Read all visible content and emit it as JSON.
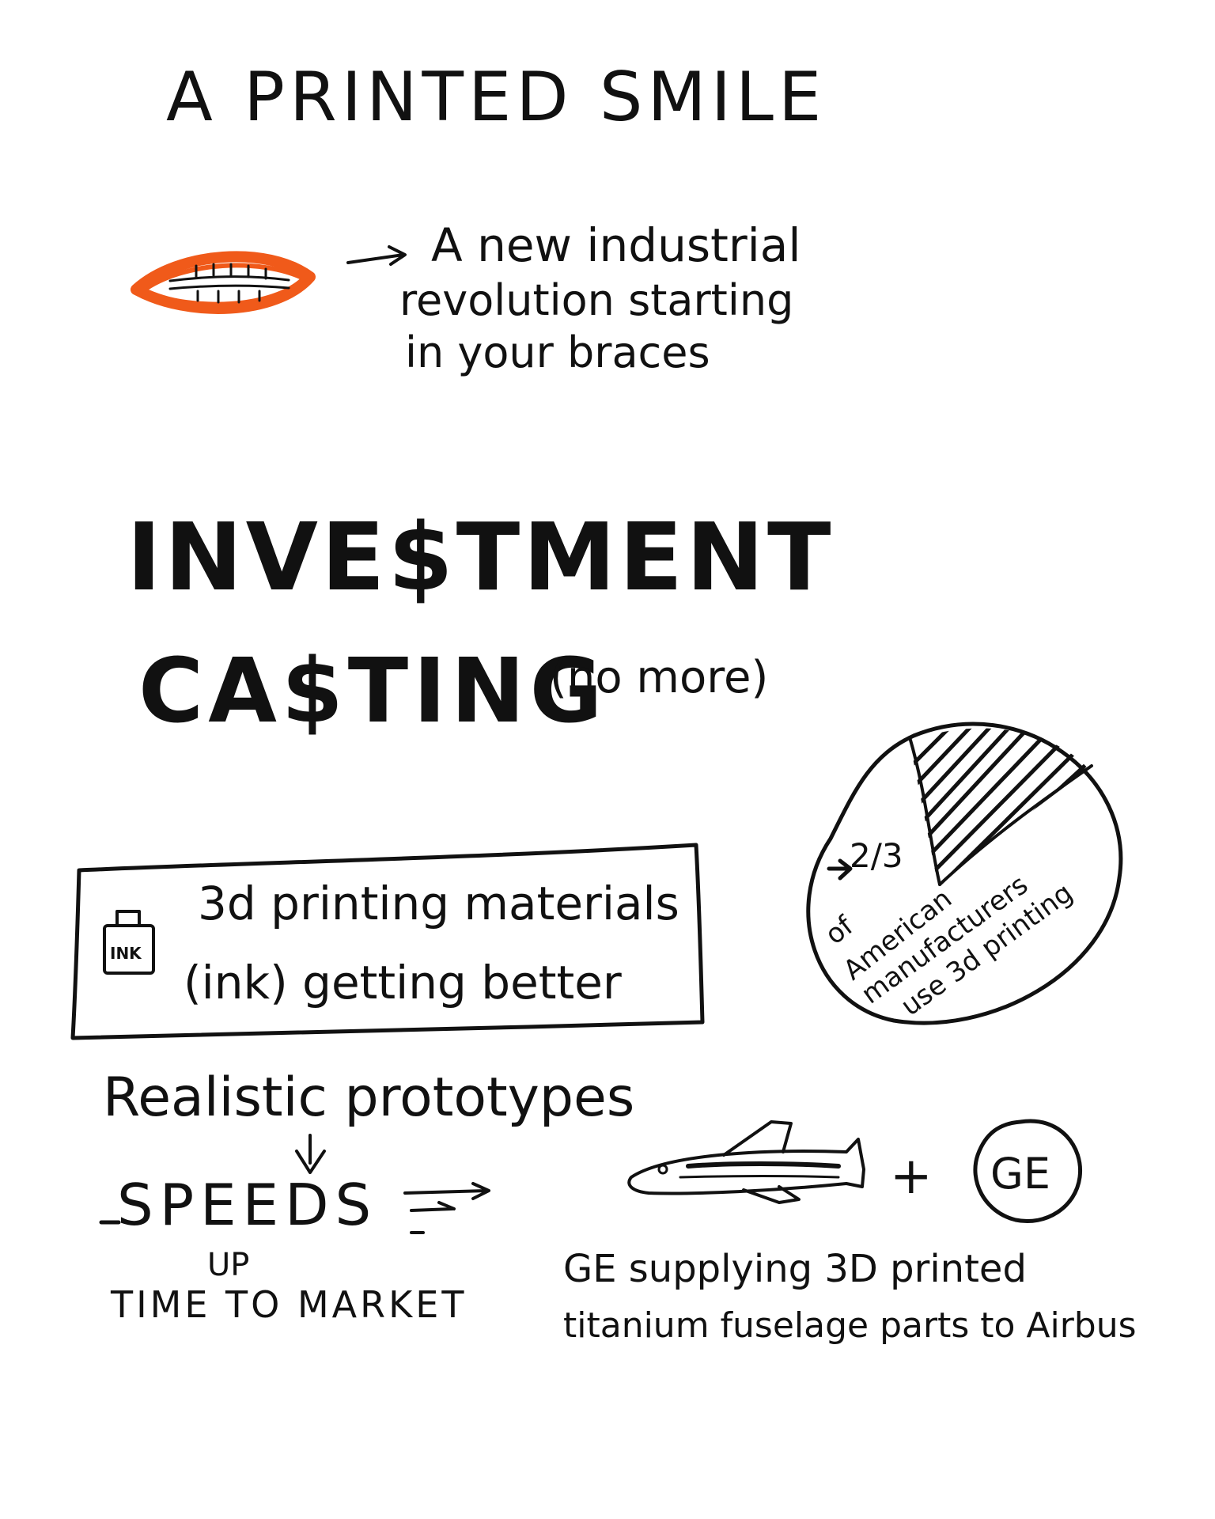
{
  "title": "A PRINTED SMILE",
  "intro": {
    "lines": [
      "A new industrial",
      "revolution starting",
      "in your braces"
    ]
  },
  "heading": {
    "line1": "INVE$TMENT",
    "line2": "CA$TING",
    "aside": "(no more)"
  },
  "materials_box": {
    "icon_label": "INK",
    "line1": "3d printing materials",
    "line2": "(ink) getting better"
  },
  "pie": {
    "figure": "2/3",
    "lines": [
      "of",
      "American",
      "manufacturers",
      "use 3d printing"
    ]
  },
  "prototypes": {
    "title": "Realistic prototypes",
    "speeds": "SPEEDS",
    "up": "UP",
    "market": "TIME TO MARKET"
  },
  "ge": {
    "plus": "+",
    "logo": "GE",
    "line1": "GE supplying 3D printed",
    "line2": "titanium fuselage parts to Airbus"
  },
  "colors": {
    "ink": "#111111",
    "accent": "#f05a1a",
    "background": "#ffffff"
  },
  "icons": [
    "smile-icon",
    "ink-bottle-icon",
    "pie-chart-icon",
    "airplane-icon",
    "arrow-icon"
  ]
}
